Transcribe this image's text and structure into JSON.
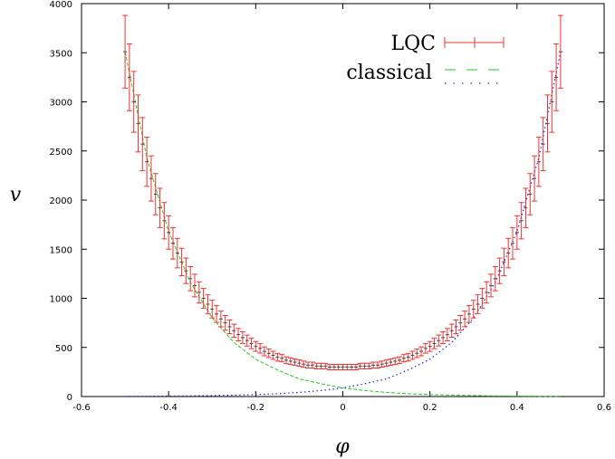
{
  "chart_data": {
    "type": "line",
    "xlabel": "φ",
    "ylabel": "v",
    "xlim": [
      -0.6,
      0.6
    ],
    "ylim": [
      0,
      4000
    ],
    "x_ticks": [
      "-0.6",
      "-0.4",
      "-0.2",
      "0",
      "0.2",
      "0.4",
      "0.6"
    ],
    "y_ticks": [
      "0",
      "500",
      "1000",
      "1500",
      "2000",
      "2500",
      "3000",
      "3500",
      "4000"
    ],
    "legend_position": "top-right",
    "colors": {
      "lqc": "#ee3333",
      "classical_contracting": "#22cc22",
      "classical_expanding": "#2222cc"
    },
    "lqc": {
      "name": "LQC",
      "x": [
        -0.5,
        -0.49,
        -0.48,
        -0.47,
        -0.46,
        -0.45,
        -0.44,
        -0.43,
        -0.42,
        -0.41,
        -0.4,
        -0.39,
        -0.38,
        -0.37,
        -0.36,
        -0.35,
        -0.34,
        -0.33,
        -0.32,
        -0.31,
        -0.3,
        -0.29,
        -0.28,
        -0.27,
        -0.26,
        -0.25,
        -0.24,
        -0.23,
        -0.22,
        -0.21,
        -0.2,
        -0.19,
        -0.18,
        -0.17,
        -0.16,
        -0.15,
        -0.14,
        -0.13,
        -0.12,
        -0.11,
        -0.1,
        -0.09,
        -0.08,
        -0.07,
        -0.06,
        -0.05,
        -0.04,
        -0.03,
        -0.02,
        -0.01,
        0,
        0.01,
        0.02,
        0.03,
        0.04,
        0.05,
        0.06,
        0.07,
        0.08,
        0.09,
        0.1,
        0.11,
        0.12,
        0.13,
        0.14,
        0.15,
        0.16,
        0.17,
        0.18,
        0.19,
        0.2,
        0.21,
        0.22,
        0.23,
        0.24,
        0.25,
        0.26,
        0.27,
        0.28,
        0.29,
        0.3,
        0.31,
        0.32,
        0.33,
        0.34,
        0.35,
        0.36,
        0.37,
        0.38,
        0.39,
        0.4,
        0.41,
        0.42,
        0.43,
        0.44,
        0.45,
        0.46,
        0.47,
        0.48,
        0.49,
        0.5
      ],
      "y": [
        3510,
        3250,
        3000,
        2780,
        2570,
        2390,
        2220,
        2060,
        1920,
        1790,
        1670,
        1560,
        1460,
        1370,
        1280,
        1200,
        1130,
        1060,
        1000,
        940,
        890,
        840,
        790,
        750,
        710,
        670,
        630,
        600,
        570,
        540,
        510,
        490,
        460,
        440,
        420,
        400,
        390,
        370,
        360,
        350,
        340,
        330,
        320,
        320,
        310,
        310,
        310,
        300,
        300,
        300,
        300,
        300,
        300,
        300,
        310,
        310,
        310,
        320,
        320,
        330,
        340,
        350,
        360,
        370,
        390,
        400,
        420,
        440,
        460,
        490,
        510,
        540,
        570,
        600,
        630,
        670,
        710,
        750,
        790,
        840,
        890,
        940,
        1000,
        1060,
        1130,
        1200,
        1280,
        1370,
        1460,
        1560,
        1670,
        1790,
        1920,
        2060,
        2220,
        2390,
        2570,
        2780,
        3000,
        3250,
        3510
      ],
      "err": [
        370,
        340,
        310,
        290,
        270,
        250,
        230,
        210,
        200,
        185,
        170,
        160,
        150,
        140,
        130,
        123,
        115,
        108,
        100,
        95,
        90,
        85,
        80,
        75,
        70,
        67,
        63,
        60,
        56,
        53,
        50,
        48,
        45,
        43,
        41,
        39,
        37,
        35,
        34,
        33,
        32,
        31,
        30,
        30,
        29,
        29,
        28,
        28,
        28,
        28,
        28,
        28,
        28,
        28,
        28,
        29,
        29,
        30,
        30,
        31,
        32,
        33,
        34,
        35,
        37,
        39,
        41,
        43,
        45,
        48,
        50,
        53,
        56,
        60,
        63,
        67,
        70,
        75,
        80,
        85,
        90,
        95,
        100,
        108,
        115,
        123,
        130,
        140,
        150,
        160,
        170,
        185,
        200,
        210,
        230,
        250,
        270,
        290,
        310,
        340,
        370
      ]
    },
    "classical": {
      "name": "classical",
      "x": [
        -0.5,
        -0.45,
        -0.4,
        -0.35,
        -0.3,
        -0.25,
        -0.2,
        -0.15,
        -0.1,
        -0.05,
        0,
        0.05,
        0.1,
        0.15,
        0.2,
        0.25,
        0.3,
        0.35,
        0.4,
        0.45,
        0.5
      ],
      "contracting": [
        3510,
        2430,
        1680,
        1160,
        800,
        550,
        380,
        270,
        180,
        130,
        88,
        61,
        42,
        29,
        20,
        14,
        9.7,
        6.7,
        4.6,
        3.2,
        2.2
      ],
      "expanding": [
        2.2,
        3.2,
        4.6,
        6.7,
        9.7,
        14,
        20,
        29,
        42,
        61,
        88,
        130,
        180,
        270,
        380,
        550,
        800,
        1160,
        1680,
        2430,
        3510
      ]
    }
  }
}
